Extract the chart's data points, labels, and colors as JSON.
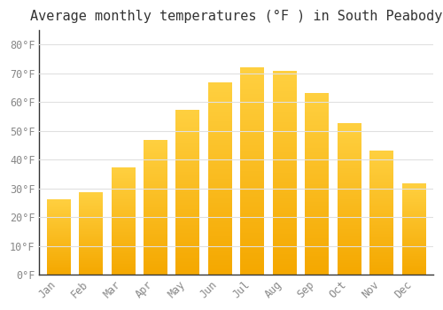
{
  "title": "Average monthly temperatures (°F ) in South Peabody",
  "months": [
    "Jan",
    "Feb",
    "Mar",
    "Apr",
    "May",
    "Jun",
    "Jul",
    "Aug",
    "Sep",
    "Oct",
    "Nov",
    "Dec"
  ],
  "values": [
    26,
    28.5,
    37,
    46.5,
    57,
    66.5,
    72,
    70.5,
    63,
    52.5,
    43,
    31.5
  ],
  "yticks": [
    0,
    10,
    20,
    30,
    40,
    50,
    60,
    70,
    80
  ],
  "ytick_labels": [
    "0°F",
    "10°F",
    "20°F",
    "30°F",
    "40°F",
    "50°F",
    "60°F",
    "70°F",
    "80°F"
  ],
  "ylim": [
    0,
    85
  ],
  "background_color": "#ffffff",
  "plot_bg_color": "#ffffff",
  "grid_color": "#e0e0e0",
  "bar_color_bottom": "#F5A800",
  "bar_color_top": "#FFD040",
  "title_fontsize": 11,
  "tick_fontsize": 8.5,
  "tick_color": "#888888",
  "axis_color": "#333333",
  "font_family": "monospace",
  "bar_width": 0.72
}
